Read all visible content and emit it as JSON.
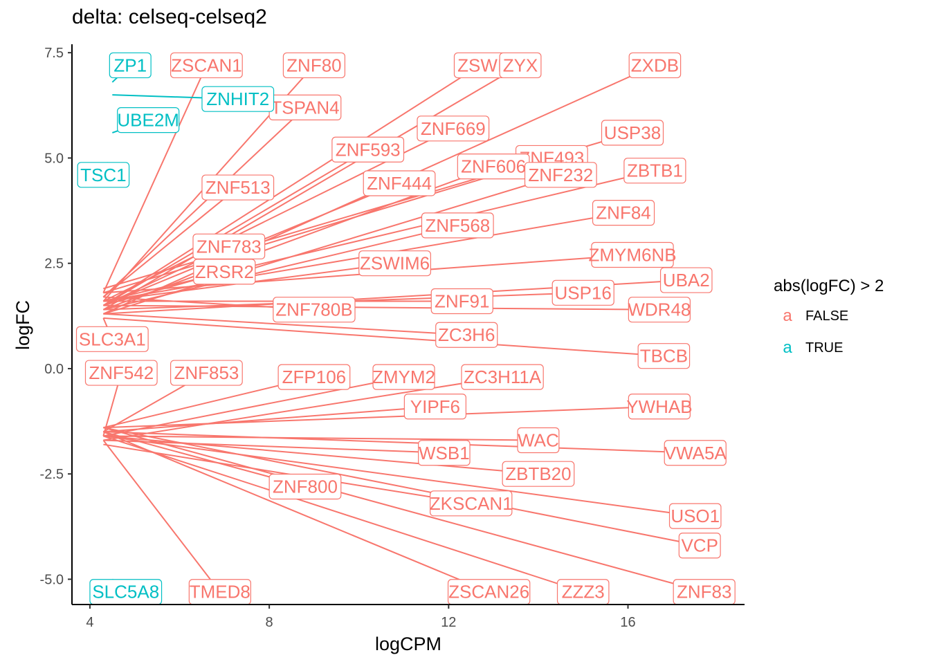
{
  "chart_data": {
    "type": "scatter",
    "title": "delta: celseq-celseq2",
    "xlabel": "logCPM",
    "ylabel": "logFC",
    "xlim": [
      3.6,
      18.6
    ],
    "ylim": [
      -5.6,
      7.7
    ],
    "x_ticks": [
      4,
      8,
      12,
      16
    ],
    "x_tick_labels": [
      "4",
      "8",
      "12",
      "16"
    ],
    "y_ticks": [
      -5.0,
      -2.5,
      0.0,
      2.5,
      5.0,
      7.5
    ],
    "y_tick_labels": [
      "-5.0",
      "-2.5",
      "0.0",
      "2.5",
      "5.0",
      "7.5"
    ],
    "grid": false,
    "legend": {
      "title": "abs(logFC) > 2",
      "placement": "right",
      "key_glyph": "a",
      "entries": [
        {
          "label": "FALSE",
          "color": "#F8766D"
        },
        {
          "label": "TRUE",
          "color": "#00BFC4"
        }
      ]
    },
    "series": [
      {
        "name": "FALSE",
        "color": "#F8766D",
        "points": [
          {
            "x": 4.3,
            "y": 1.8,
            "label": "ZSCAN1",
            "lx": 6.6,
            "ly": 7.2
          },
          {
            "x": 4.3,
            "y": 1.6,
            "label": "ZNF80",
            "lx": 9.0,
            "ly": 7.2
          },
          {
            "x": 4.3,
            "y": 1.5,
            "label": "ZSWI",
            "lx": 12.7,
            "ly": 7.2
          },
          {
            "x": 4.3,
            "y": 1.4,
            "label": "ZYX",
            "lx": 13.6,
            "ly": 7.2
          },
          {
            "x": 4.3,
            "y": 1.3,
            "label": "ZXDB",
            "lx": 16.6,
            "ly": 7.2
          },
          {
            "x": 4.3,
            "y": 1.7,
            "label": "TSPAN4",
            "lx": 8.8,
            "ly": 6.2
          },
          {
            "x": 4.3,
            "y": 1.9,
            "label": "USP38",
            "lx": 16.1,
            "ly": 5.6
          },
          {
            "x": 4.3,
            "y": 1.6,
            "label": "ZNF669",
            "lx": 12.1,
            "ly": 5.7
          },
          {
            "x": 4.3,
            "y": 1.5,
            "label": "ZNF593",
            "lx": 10.2,
            "ly": 5.2
          },
          {
            "x": 4.3,
            "y": 1.8,
            "label": "ZNF493",
            "lx": 14.3,
            "ly": 5.0
          },
          {
            "x": 4.3,
            "y": 1.4,
            "label": "ZNF606",
            "lx": 13.0,
            "ly": 4.8
          },
          {
            "x": 4.3,
            "y": 1.6,
            "label": "ZBTB1",
            "lx": 16.6,
            "ly": 4.7
          },
          {
            "x": 4.3,
            "y": 1.5,
            "label": "ZNF444",
            "lx": 10.9,
            "ly": 4.4
          },
          {
            "x": 4.3,
            "y": 1.3,
            "label": "ZNF232",
            "lx": 14.5,
            "ly": 4.6
          },
          {
            "x": 4.3,
            "y": 1.7,
            "label": "ZNF513",
            "lx": 7.3,
            "ly": 4.3
          },
          {
            "x": 4.3,
            "y": 1.6,
            "label": "ZNF84",
            "lx": 15.9,
            "ly": 3.7
          },
          {
            "x": 4.3,
            "y": 1.4,
            "label": "ZNF568",
            "lx": 12.2,
            "ly": 3.4
          },
          {
            "x": 4.3,
            "y": 1.5,
            "label": "ZNF783",
            "lx": 7.1,
            "ly": 2.9
          },
          {
            "x": 4.3,
            "y": 1.8,
            "label": "ZMYM6NB",
            "lx": 16.1,
            "ly": 2.7
          },
          {
            "x": 4.3,
            "y": 1.6,
            "label": "ZSWIM6",
            "lx": 10.8,
            "ly": 2.5
          },
          {
            "x": 4.3,
            "y": 1.5,
            "label": "ZRSR2",
            "lx": 7.0,
            "ly": 2.3
          },
          {
            "x": 4.3,
            "y": 1.3,
            "label": "UBA2",
            "lx": 17.3,
            "ly": 2.1
          },
          {
            "x": 4.3,
            "y": 1.4,
            "label": "USP16",
            "lx": 15.0,
            "ly": 1.8
          },
          {
            "x": 4.3,
            "y": 1.6,
            "label": "ZNF91",
            "lx": 12.3,
            "ly": 1.6
          },
          {
            "x": 4.3,
            "y": 1.5,
            "label": "WDR48",
            "lx": 16.7,
            "ly": 1.4
          },
          {
            "x": 4.3,
            "y": 1.7,
            "label": "ZNF780B",
            "lx": 9.0,
            "ly": 1.4
          },
          {
            "x": 4.3,
            "y": 1.2,
            "label": "SLC3A1",
            "lx": 4.5,
            "ly": 0.7
          },
          {
            "x": 4.3,
            "y": 1.3,
            "label": "ZC3H6",
            "lx": 12.4,
            "ly": 0.8
          },
          {
            "x": 4.3,
            "y": 1.2,
            "label": "TBCB",
            "lx": 16.8,
            "ly": 0.3
          },
          {
            "x": 4.3,
            "y": -1.6,
            "label": "ZNF542",
            "lx": 4.7,
            "ly": -0.1
          },
          {
            "x": 4.3,
            "y": -1.5,
            "label": "ZNF853",
            "lx": 6.6,
            "ly": -0.1
          },
          {
            "x": 4.3,
            "y": -1.4,
            "label": "ZFP106",
            "lx": 9.0,
            "ly": -0.2
          },
          {
            "x": 4.3,
            "y": -1.6,
            "label": "ZMYM2",
            "lx": 11.0,
            "ly": -0.2
          },
          {
            "x": 4.3,
            "y": -1.7,
            "label": "ZC3H11A",
            "lx": 13.2,
            "ly": -0.2
          },
          {
            "x": 4.3,
            "y": -1.5,
            "label": "YIPF6",
            "lx": 11.7,
            "ly": -0.9
          },
          {
            "x": 4.3,
            "y": -1.4,
            "label": "YWHAB",
            "lx": 16.7,
            "ly": -0.9
          },
          {
            "x": 4.3,
            "y": -1.6,
            "label": "WAC",
            "lx": 14.0,
            "ly": -1.7
          },
          {
            "x": 4.3,
            "y": -1.5,
            "label": "VWA5A",
            "lx": 17.5,
            "ly": -2.0
          },
          {
            "x": 4.3,
            "y": -1.7,
            "label": "WSB1",
            "lx": 11.9,
            "ly": -2.0
          },
          {
            "x": 4.3,
            "y": -1.6,
            "label": "ZBTB20",
            "lx": 14.0,
            "ly": -2.5
          },
          {
            "x": 4.3,
            "y": -1.5,
            "label": "ZNF800",
            "lx": 8.8,
            "ly": -2.8
          },
          {
            "x": 4.3,
            "y": -1.8,
            "label": "ZKSCAN1",
            "lx": 12.5,
            "ly": -3.2
          },
          {
            "x": 4.3,
            "y": -1.6,
            "label": "USO1",
            "lx": 17.5,
            "ly": -3.5
          },
          {
            "x": 4.3,
            "y": -1.4,
            "label": "VCP",
            "lx": 17.6,
            "ly": -4.2
          },
          {
            "x": 4.3,
            "y": -1.7,
            "label": "TMED8",
            "lx": 6.9,
            "ly": -5.3
          },
          {
            "x": 4.3,
            "y": -1.5,
            "label": "ZSCAN26",
            "lx": 12.9,
            "ly": -5.3
          },
          {
            "x": 4.3,
            "y": -1.6,
            "label": "ZZZ3",
            "lx": 15.0,
            "ly": -5.3
          },
          {
            "x": 4.3,
            "y": -1.4,
            "label": "ZNF83",
            "lx": 17.7,
            "ly": -5.3
          }
        ]
      },
      {
        "name": "TRUE",
        "color": "#00BFC4",
        "points": [
          {
            "x": 4.5,
            "y": 6.8,
            "label": "ZP1",
            "lx": 4.9,
            "ly": 7.2
          },
          {
            "x": 4.5,
            "y": 6.5,
            "label": "ZNHIT2",
            "lx": 7.3,
            "ly": 6.4
          },
          {
            "x": 4.5,
            "y": 5.6,
            "label": "UBE2M",
            "lx": 5.3,
            "ly": 5.9
          },
          {
            "x": 4.4,
            "y": 4.9,
            "label": "TSC1",
            "lx": 4.3,
            "ly": 4.6
          },
          {
            "x": 4.5,
            "y": -5.0,
            "label": "SLC5A8",
            "lx": 4.8,
            "ly": -5.3
          }
        ]
      }
    ]
  }
}
